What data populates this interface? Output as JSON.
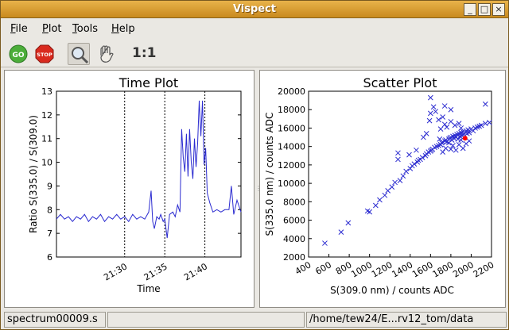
{
  "window": {
    "title": "Vispect"
  },
  "menu": [
    {
      "label": "File",
      "u": "F",
      "rest": "ile"
    },
    {
      "label": "Plot",
      "u": "P",
      "rest": "lot"
    },
    {
      "label": "Tools",
      "u": "T",
      "rest": "ools"
    },
    {
      "label": "Help",
      "u": "H",
      "rest": "elp"
    }
  ],
  "toolbar": {
    "go_label": "GO",
    "stop_label": "STOP",
    "ratio_label": "1:1",
    "icons": [
      "go-icon",
      "stop-icon",
      "zoom-icon",
      "pan-hand-icon"
    ]
  },
  "status": {
    "left": "spectrum00009.s",
    "middle": "",
    "right": "/home/tew24/E...rv12_tom/data"
  },
  "colors": {
    "series": "#2b2bd0",
    "highlight": "#ff0000",
    "title_bar": "#d99a2e"
  },
  "chart_data": [
    {
      "type": "line",
      "title": "Time Plot",
      "xlabel": "Time",
      "ylabel": "Ratio S(335.0) / S(309.0)",
      "ylim": [
        6,
        13
      ],
      "yticks": [
        "6",
        "7",
        "8",
        "9",
        "10",
        "11",
        "12",
        "13"
      ],
      "xticks": [
        "21:30",
        "21:35",
        "21:40"
      ],
      "xlim_minutes": [
        21.5,
        44.5
      ],
      "xtick_minutes": [
        30,
        35,
        40
      ],
      "vlines_minutes": [
        30,
        35,
        40
      ],
      "x_minutes": [
        21.5,
        22,
        22.5,
        23,
        23.5,
        24,
        24.5,
        25,
        25.5,
        26,
        26.5,
        27,
        27.5,
        28,
        28.5,
        29,
        29.5,
        30,
        30.5,
        31,
        31.5,
        32,
        32.5,
        33,
        33.3,
        33.5,
        33.7,
        34,
        34.3,
        34.5,
        34.8,
        35,
        35.3,
        35.6,
        36,
        36.3,
        36.6,
        36.9,
        37.1,
        37.3,
        37.5,
        37.7,
        37.9,
        38.1,
        38.3,
        38.5,
        38.7,
        38.9,
        39.1,
        39.3,
        39.5,
        39.7,
        39.9,
        40.1,
        40.3,
        40.6,
        41,
        41.5,
        42,
        42.5,
        43,
        43.3,
        43.6,
        44,
        44.5
      ],
      "values": [
        7.6,
        7.8,
        7.6,
        7.7,
        7.5,
        7.7,
        7.6,
        7.8,
        7.5,
        7.7,
        7.6,
        7.8,
        7.5,
        7.7,
        7.6,
        7.8,
        7.6,
        7.7,
        7.5,
        7.8,
        7.6,
        7.7,
        7.6,
        7.9,
        8.8,
        7.5,
        7.2,
        7.7,
        7.6,
        7.8,
        7.5,
        7.6,
        6.8,
        7.8,
        7.9,
        7.7,
        8.2,
        7.9,
        11.4,
        10.2,
        9.6,
        11.2,
        9.4,
        11.4,
        10.0,
        9.3,
        11.0,
        9.8,
        10.8,
        12.6,
        11.1,
        12.6,
        9.9,
        10.6,
        8.7,
        8.3,
        7.9,
        8.0,
        7.9,
        8.0,
        8.0,
        9.0,
        7.8,
        8.4,
        7.9
      ]
    },
    {
      "type": "scatter",
      "title": "Scatter Plot",
      "xlabel": "S(309.0 nm) / counts ADC",
      "ylabel": "S(335.0 nm) / counts ADC",
      "xlim": [
        400,
        2200
      ],
      "ylim": [
        2000,
        20000
      ],
      "xticks": [
        "400",
        "600",
        "800",
        "1000",
        "1200",
        "1400",
        "1600",
        "1800",
        "2000",
        "2200"
      ],
      "yticks": [
        "2000",
        "4000",
        "6000",
        "8000",
        "10000",
        "12000",
        "14000",
        "16000",
        "18000",
        "20000"
      ],
      "highlight": {
        "x": 1940,
        "y": 14900
      },
      "points": [
        [
          560,
          3500
        ],
        [
          720,
          4700
        ],
        [
          790,
          5700
        ],
        [
          980,
          7000
        ],
        [
          1000,
          6900
        ],
        [
          1060,
          7600
        ],
        [
          1100,
          8200
        ],
        [
          1150,
          8700
        ],
        [
          1180,
          9200
        ],
        [
          1220,
          9600
        ],
        [
          1250,
          10100
        ],
        [
          1300,
          10300
        ],
        [
          1330,
          10800
        ],
        [
          1360,
          11300
        ],
        [
          1400,
          11600
        ],
        [
          1420,
          11900
        ],
        [
          1440,
          12100
        ],
        [
          1470,
          12300
        ],
        [
          1500,
          12600
        ],
        [
          1520,
          12800
        ],
        [
          1550,
          13000
        ],
        [
          1560,
          13200
        ],
        [
          1580,
          13400
        ],
        [
          1600,
          13500
        ],
        [
          1610,
          13600
        ],
        [
          1620,
          13700
        ],
        [
          1640,
          13900
        ],
        [
          1660,
          14000
        ],
        [
          1680,
          14100
        ],
        [
          1700,
          14200
        ],
        [
          1710,
          14400
        ],
        [
          1720,
          14500
        ],
        [
          1740,
          14600
        ],
        [
          1750,
          14700
        ],
        [
          1760,
          14500
        ],
        [
          1780,
          14800
        ],
        [
          1790,
          14900
        ],
        [
          1800,
          15000
        ],
        [
          1810,
          14700
        ],
        [
          1820,
          15100
        ],
        [
          1830,
          14900
        ],
        [
          1840,
          15200
        ],
        [
          1850,
          15000
        ],
        [
          1860,
          15300
        ],
        [
          1870,
          14800
        ],
        [
          1880,
          15400
        ],
        [
          1890,
          15100
        ],
        [
          1900,
          15500
        ],
        [
          1910,
          15200
        ],
        [
          1920,
          15600
        ],
        [
          1930,
          15300
        ],
        [
          1950,
          15700
        ],
        [
          1960,
          15400
        ],
        [
          1970,
          15800
        ],
        [
          1980,
          15500
        ],
        [
          2000,
          15900
        ],
        [
          2020,
          15700
        ],
        [
          2040,
          16000
        ],
        [
          2060,
          16100
        ],
        [
          2080,
          16200
        ],
        [
          2100,
          16300
        ],
        [
          2140,
          16500
        ],
        [
          2180,
          16600
        ],
        [
          1280,
          13300
        ],
        [
          1280,
          12600
        ],
        [
          1390,
          13100
        ],
        [
          1460,
          13600
        ],
        [
          1480,
          12500
        ],
        [
          1530,
          15000
        ],
        [
          1560,
          15400
        ],
        [
          1590,
          16800
        ],
        [
          1600,
          17600
        ],
        [
          1630,
          18300
        ],
        [
          1650,
          17800
        ],
        [
          1680,
          16900
        ],
        [
          1700,
          15900
        ],
        [
          1720,
          17200
        ],
        [
          1740,
          16400
        ],
        [
          1760,
          16100
        ],
        [
          1690,
          14800
        ],
        [
          1700,
          14200
        ],
        [
          1720,
          13400
        ],
        [
          1750,
          13800
        ],
        [
          1780,
          14400
        ],
        [
          1800,
          13700
        ],
        [
          1820,
          14100
        ],
        [
          1850,
          13600
        ],
        [
          1880,
          14200
        ],
        [
          1900,
          14700
        ],
        [
          1920,
          13800
        ],
        [
          1950,
          14300
        ],
        [
          1980,
          14600
        ],
        [
          1600,
          19300
        ],
        [
          1800,
          18000
        ],
        [
          2140,
          18600
        ],
        [
          1740,
          18400
        ],
        [
          1800,
          16700
        ],
        [
          1840,
          16300
        ],
        [
          1880,
          16500
        ],
        [
          1900,
          16000
        ]
      ]
    }
  ]
}
